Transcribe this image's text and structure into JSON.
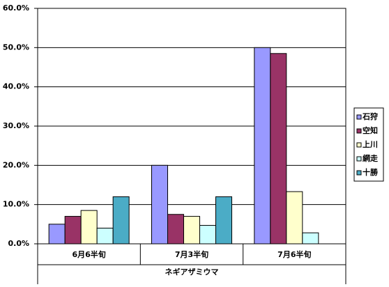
{
  "chart_data": {
    "type": "bar",
    "x_label": "ネギアザミウマ",
    "categories": [
      "6月6半旬",
      "7月3半旬",
      "7月6半旬"
    ],
    "series": [
      {
        "name": "石狩",
        "color": "#9999ff",
        "values": [
          5,
          20,
          50
        ]
      },
      {
        "name": "空知",
        "color": "#993366",
        "values": [
          7,
          7.5,
          48.5
        ]
      },
      {
        "name": "上川",
        "color": "#ffffcc",
        "values": [
          8.5,
          7,
          13.3
        ]
      },
      {
        "name": "網走",
        "color": "#ccffff",
        "values": [
          4,
          4.7,
          2.8
        ]
      },
      {
        "name": "十勝",
        "color": "#4bacc6",
        "values": [
          12,
          12,
          null
        ]
      }
    ],
    "ylim": [
      0,
      60
    ],
    "yticks": [
      {
        "value": 0,
        "label": "0.0%"
      },
      {
        "value": 10,
        "label": "10.0%"
      },
      {
        "value": 20,
        "label": "20.0%"
      },
      {
        "value": 30,
        "label": "30.0%"
      },
      {
        "value": 40,
        "label": "40.0%"
      },
      {
        "value": 50,
        "label": "50.0%"
      },
      {
        "value": 60,
        "label": "60.0%"
      }
    ],
    "grid": true,
    "legend": "right"
  }
}
